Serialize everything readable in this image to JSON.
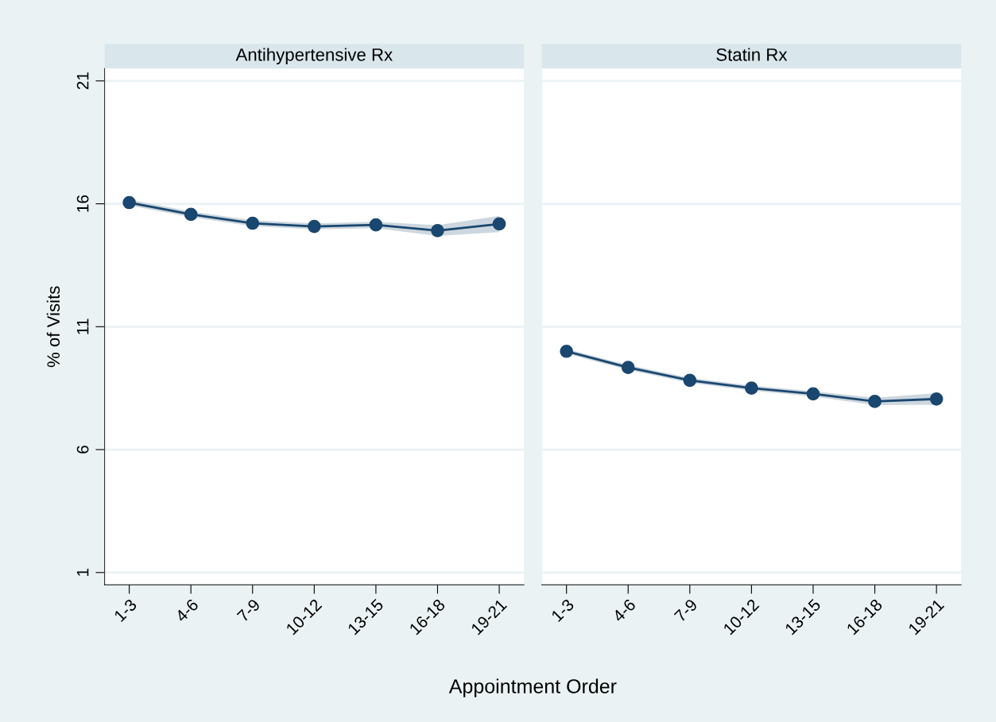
{
  "chart_data": [
    {
      "type": "line",
      "title": "Antihypertensive Rx",
      "xlabel": "Appointment Order",
      "ylabel": "% of Visits",
      "categories": [
        "1-3",
        "4-6",
        "7-9",
        "10-12",
        "13-15",
        "16-18",
        "19-21"
      ],
      "series": [
        {
          "color": "#1a476f",
          "values": [
            16.05,
            15.57,
            15.21,
            15.08,
            15.14,
            14.91,
            15.18
          ],
          "lower": [
            15.93,
            15.45,
            15.09,
            14.96,
            15.01,
            14.69,
            14.85
          ],
          "upper": [
            16.17,
            15.69,
            15.33,
            15.2,
            15.27,
            15.13,
            15.51
          ]
        }
      ],
      "ylim": [
        0.5,
        21.5
      ],
      "yticks": [
        1,
        6,
        11,
        16,
        21
      ],
      "grid": "y",
      "marker": "circle",
      "line_style": "solid",
      "legend": false
    },
    {
      "type": "line",
      "title": "Statin Rx",
      "categories": [
        "1-3",
        "4-6",
        "7-9",
        "10-12",
        "13-15",
        "16-18",
        "19-21"
      ],
      "series": [
        {
          "color": "#1a476f",
          "values": [
            10.0,
            9.34,
            8.82,
            8.5,
            8.27,
            7.96,
            8.06
          ],
          "lower": [
            9.9,
            9.24,
            8.72,
            8.4,
            8.16,
            7.81,
            7.83
          ],
          "upper": [
            10.1,
            9.44,
            8.92,
            8.6,
            8.38,
            8.11,
            8.3
          ]
        }
      ],
      "ylim": [
        0.5,
        21.5
      ],
      "yticks": [
        1,
        6,
        11,
        16,
        21
      ],
      "grid": "y",
      "marker": "circle",
      "line_style": "solid",
      "legend": false,
      "tick_labels": "x"
    }
  ]
}
